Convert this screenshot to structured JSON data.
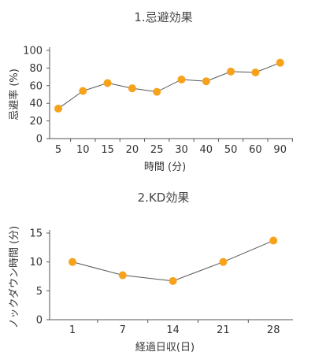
{
  "chart_data": [
    {
      "type": "line",
      "title": "1.忌避効果",
      "xlabel": "時間 (分)",
      "ylabel": "忌避率 (%)",
      "categories": [
        "5",
        "10",
        "15",
        "20",
        "25",
        "30",
        "40",
        "50",
        "60",
        "90"
      ],
      "yticks": [
        "0",
        "20",
        "40",
        "60",
        "80",
        "100"
      ],
      "ylim": [
        0,
        100
      ],
      "series": [
        {
          "values": [
            34,
            54,
            63,
            57,
            53,
            67,
            65,
            76,
            75,
            86
          ]
        }
      ],
      "grid": false
    },
    {
      "type": "line",
      "title": "2.KD効果",
      "xlabel": "経過日収(日)",
      "ylabel": "ノックダウン時間 (分)",
      "categories": [
        "1",
        "7",
        "14",
        "21",
        "28"
      ],
      "yticks": [
        "0",
        "5",
        "10",
        "15"
      ],
      "ylim": [
        0,
        15
      ],
      "series": [
        {
          "values": [
            10,
            7.7,
            6.7,
            10,
            13.7
          ]
        }
      ],
      "grid": false
    }
  ],
  "colors": {
    "marker": "#F7A21B",
    "line": "#555555",
    "axis": "#555555"
  }
}
